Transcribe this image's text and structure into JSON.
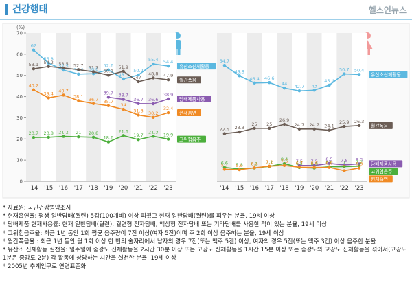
{
  "header": {
    "title": "건강행태",
    "logo": "헬스인뉴스"
  },
  "chart_data": [
    {
      "type": "line",
      "ylabel": "(%)",
      "categories": [
        "'14",
        "'15",
        "'16",
        "'17",
        "'18",
        "'19",
        "'20",
        "'21",
        "'22",
        "'23"
      ],
      "ylim": [
        0,
        70
      ],
      "yticks": [
        0,
        10,
        20,
        30,
        40,
        50,
        60,
        70
      ],
      "grid": false,
      "series": [
        {
          "name": "유산소신체활동",
          "color": "#5bb8e0",
          "values": [
            62.0,
            55.8,
            52.5,
            50.6,
            50.8,
            52.6,
            48.3,
            50.2,
            55.4,
            54.4
          ]
        },
        {
          "name": "월간폭음",
          "color": "#6b5d55",
          "values": [
            53.1,
            54.2,
            53.5,
            52.7,
            51.7,
            50.1,
            51.9,
            47.0,
            48.8,
            47.9
          ]
        },
        {
          "name": "담배제품사용",
          "color": "#8a5bb0",
          "values": [
            null,
            null,
            null,
            null,
            null,
            39.7,
            38.7,
            36.7,
            36.6,
            38.9
          ]
        },
        {
          "name": "현재흡연",
          "color": "#f08a24",
          "values": [
            43.2,
            39.4,
            40.7,
            38.1,
            36.7,
            35.7,
            34.0,
            31.3,
            30.2,
            32.4
          ]
        },
        {
          "name": "고위험음주",
          "color": "#4caf3c",
          "values": [
            20.7,
            20.8,
            21.2,
            21.0,
            20.8,
            18.6,
            21.6,
            19.7,
            21.3,
            19.9
          ]
        }
      ]
    },
    {
      "type": "line",
      "categories": [
        "'14",
        "'15",
        "'16",
        "'17",
        "'18",
        "'19",
        "'20",
        "'21",
        "'22",
        "'23"
      ],
      "ylim": [
        0,
        70
      ],
      "grid": false,
      "series": [
        {
          "name": "유산소신체활동",
          "color": "#5bb8e0",
          "values": [
            54.7,
            49.8,
            46.4,
            46.6,
            44.0,
            42.7,
            43.0,
            45.4,
            50.7,
            50.4
          ]
        },
        {
          "name": "월간폭음",
          "color": "#6b5d55",
          "values": [
            22.5,
            23.3,
            25.0,
            25.0,
            26.9,
            24.7,
            24.7,
            24.1,
            25.9,
            26.3
          ]
        },
        {
          "name": "담배제품사용",
          "color": "#8a5bb0",
          "values": [
            null,
            null,
            null,
            null,
            null,
            7.5,
            7.5,
            8.5,
            7.8,
            8.3
          ]
        },
        {
          "name": "고위험음주",
          "color": "#4caf3c",
          "values": [
            6.6,
            5.8,
            6.3,
            7.1,
            8.4,
            6.5,
            6.3,
            6.9,
            7.0,
            7.2
          ]
        },
        {
          "name": "현재흡연",
          "color": "#f08a24",
          "values": [
            5.7,
            5.5,
            6.4,
            7.2,
            7.5,
            6.7,
            6.6,
            6.6,
            5.0,
            6.3
          ]
        }
      ]
    }
  ],
  "notes": [
    "* 자료원: 국민건강영양조사",
    "* 현재흡연율: 평생 일반담배(궐련) 5갑(100개비) 이상 피웠고 현재 일반담배(궐련)를 피우는 분율, 19세 이상",
    "* 담배제품 현재사용률: 현재 일반담배(궐련), 궐련형 전자담배, 액상형 전자담배 또는 기타담배를 사용한 적이 있는 분율, 19세 이상",
    "* 고위험음주율: 최근 1년 동안 1회 평균 음주량이 7잔 이상(여자 5잔)이며 주 2회 이상 음주하는 분율, 19세 이상",
    "* 월간폭음율 : 최근 1년 동안 월 1회 이상 한 번의 술자리에서 남자의 경우 7잔(또는 맥주 5캔) 이상, 여자의 경우 5잔(또는 맥주 3캔) 이상 음주한 분율",
    "* 유산소 신체활동 실천율: 일주일에 중강도 신체활동을 2시간 30분 이상 또는 고강도 신체활동을 1시간 15분 이상 또는 중강도와 고강도 신체활동을 섞어서(고강도 1분은 중강도 2분) 각 활동에 상당하는 시간을 실천한 분율, 19세 이상",
    "* 2005년 추계인구로 연령표준화"
  ]
}
